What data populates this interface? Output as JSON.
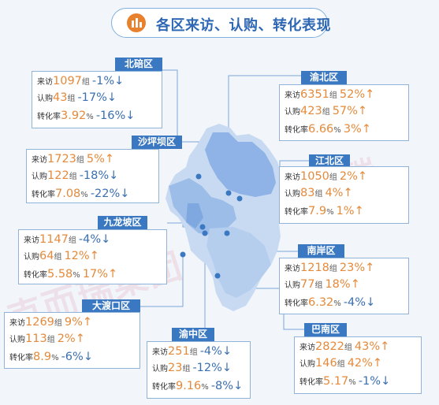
{
  "title": "各区来访、认购、转化表现",
  "labels": {
    "visit": "来访",
    "sub": "认购",
    "conv": "转化率",
    "unit": "组",
    "up": "↑",
    "down": "↓"
  },
  "watermark": {
    "left": "克而瑞集团",
    "right": "克而瑞"
  },
  "colors": {
    "accent": "#3a78c2",
    "value": "#e58a3b",
    "down": "#3a6fb0",
    "map_light": "#c7daf2",
    "map_dark": "#8fb3e6"
  },
  "districts": [
    {
      "name": "北碚区",
      "visits": "1097",
      "visits_chg": "-1%",
      "visits_dir": "down",
      "subs": "43",
      "subs_chg": "-17%",
      "subs_dir": "down",
      "conv": "3.92",
      "conv_chg": "-16%",
      "conv_dir": "down"
    },
    {
      "name": "渝北区",
      "visits": "6351",
      "visits_chg": "52%",
      "visits_dir": "up",
      "subs": "423",
      "subs_chg": "57%",
      "subs_dir": "up",
      "conv": "6.66",
      "conv_chg": "3%",
      "conv_dir": "up"
    },
    {
      "name": "沙坪坝区",
      "visits": "1723",
      "visits_chg": "5%",
      "visits_dir": "up",
      "subs": "122",
      "subs_chg": "-18%",
      "subs_dir": "down",
      "conv": "7.08",
      "conv_chg": "-22%",
      "conv_dir": "down"
    },
    {
      "name": "江北区",
      "visits": "1050",
      "visits_chg": "2%",
      "visits_dir": "up",
      "subs": "83",
      "subs_chg": "4%",
      "subs_dir": "up",
      "conv": "7.9",
      "conv_chg": "1%",
      "conv_dir": "up"
    },
    {
      "name": "九龙坡区",
      "visits": "1147",
      "visits_chg": "-4%",
      "visits_dir": "down",
      "subs": "64",
      "subs_chg": "12%",
      "subs_dir": "up",
      "conv": "5.58",
      "conv_chg": "17%",
      "conv_dir": "up"
    },
    {
      "name": "南岸区",
      "visits": "1218",
      "visits_chg": "23%",
      "visits_dir": "up",
      "subs": "77",
      "subs_chg": "18%",
      "subs_dir": "up",
      "conv": "6.32",
      "conv_chg": "-4%",
      "conv_dir": "down"
    },
    {
      "name": "大渡口区",
      "visits": "1269",
      "visits_chg": "9%",
      "visits_dir": "up",
      "subs": "113",
      "subs_chg": "2%",
      "subs_dir": "up",
      "conv": "8.9",
      "conv_chg": "-6%",
      "conv_dir": "down"
    },
    {
      "name": "渝中区",
      "visits": "251",
      "visits_chg": "-4%",
      "visits_dir": "down",
      "subs": "23",
      "subs_chg": "-12%",
      "subs_dir": "down",
      "conv": "9.16",
      "conv_chg": "-8%",
      "conv_dir": "down"
    },
    {
      "name": "巴南区",
      "visits": "2822",
      "visits_chg": "43%",
      "visits_dir": "up",
      "subs": "146",
      "subs_chg": "42%",
      "subs_dir": "up",
      "conv": "5.17",
      "conv_chg": "-1%",
      "conv_dir": "down"
    }
  ]
}
